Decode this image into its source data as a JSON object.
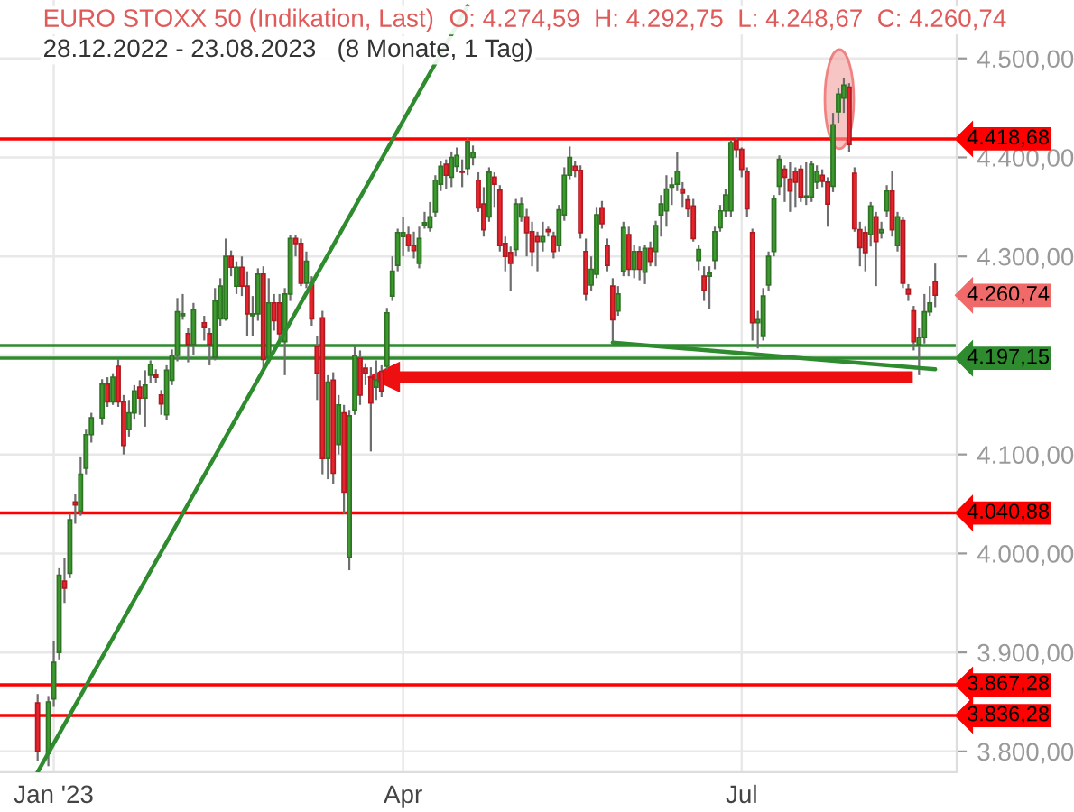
{
  "chart_data": {
    "type": "candlestick",
    "title": "EURO STOXX 50 (Indikation, Last)",
    "subtitle": "28.12.2022 - 23.08.2023   (8 Monate, 1 Tag)",
    "annotations": [
      "O: 4.274,59  H: 4.292,75  L: 4.248,67  C: 4.260,74",
      "4.260,74"
    ],
    "categories": [
      null,
      null,
      null,
      "Jan '23",
      null,
      null,
      null,
      null,
      null,
      null,
      null,
      null,
      null,
      null,
      null,
      null,
      null,
      null,
      null,
      null,
      null,
      null,
      null,
      null,
      null,
      null,
      null,
      null,
      null,
      null,
      null,
      null,
      null,
      null,
      null,
      null,
      null,
      null,
      null,
      null,
      null,
      null,
      null,
      null,
      null,
      null,
      null,
      null,
      null,
      null,
      null,
      null,
      null,
      null,
      null,
      null,
      null,
      null,
      null,
      null,
      null,
      null,
      null,
      null,
      null,
      null,
      null,
      null,
      "Apr",
      null,
      null,
      null,
      null,
      null,
      null,
      null,
      null,
      null,
      null,
      null,
      null,
      null,
      null,
      null,
      null,
      null,
      null,
      null,
      null,
      null,
      null,
      null,
      null,
      null,
      null,
      null,
      null,
      null,
      null,
      null,
      null,
      null,
      null,
      null,
      null,
      null,
      null,
      null,
      null,
      null,
      null,
      null,
      null,
      null,
      null,
      null,
      null,
      null,
      null,
      null,
      null,
      null,
      null,
      null,
      null,
      null,
      null,
      null,
      null,
      null,
      null,
      "Jul",
      null,
      null,
      null,
      null,
      null,
      null,
      null,
      null,
      null,
      null,
      null,
      null,
      null,
      null,
      null,
      null,
      null,
      null,
      null,
      null,
      null,
      null,
      null,
      null,
      null,
      null,
      null,
      null,
      null,
      null,
      null,
      null,
      null,
      null,
      null,
      null
    ],
    "ohlc": [
      [
        3849,
        3858,
        3790,
        3800
      ],
      null,
      [
        3798,
        3856,
        3785,
        3850
      ],
      [
        3853,
        3912,
        3845,
        3890
      ],
      [
        3900,
        3985,
        3893,
        3978
      ],
      [
        3972,
        3995,
        3950,
        3965
      ],
      [
        3980,
        4040,
        3975,
        4034
      ],
      [
        4052,
        4060,
        4030,
        4049
      ],
      [
        4043,
        4098,
        4038,
        4080
      ],
      [
        4086,
        4125,
        4080,
        4120
      ],
      [
        4120,
        4142,
        4112,
        4137
      ],
      null,
      [
        4137,
        4176,
        4130,
        4171
      ],
      [
        4171,
        4178,
        4148,
        4153
      ],
      [
        4153,
        4182,
        4150,
        4178
      ],
      [
        4189,
        4196,
        4148,
        4153
      ],
      [
        4153,
        4160,
        4100,
        4109
      ],
      [
        4125,
        4155,
        4118,
        4142
      ],
      [
        4142,
        4170,
        4136,
        4164
      ],
      [
        4168,
        4175,
        4140,
        4157
      ],
      [
        4157,
        4185,
        4128,
        4170
      ],
      [
        4180,
        4195,
        4172,
        4191
      ],
      [
        4180,
        4186,
        4172,
        4178
      ],
      [
        4160,
        4165,
        4140,
        4151
      ],
      [
        4140,
        4190,
        4135,
        4185
      ],
      [
        4175,
        4206,
        4170,
        4200
      ],
      [
        4200,
        4258,
        4194,
        4244
      ],
      [
        4240,
        4262,
        4236,
        4242
      ],
      [
        4222,
        4228,
        4193,
        4211
      ],
      [
        4211,
        4253,
        4200,
        4246
      ],
      null,
      [
        4233,
        4240,
        4215,
        4229
      ],
      [
        4222,
        4228,
        4190,
        4211
      ],
      [
        4198,
        4268,
        4195,
        4255
      ],
      [
        4237,
        4278,
        4230,
        4270
      ],
      [
        4237,
        4318,
        4235,
        4300
      ],
      [
        4300,
        4306,
        4280,
        4289
      ],
      [
        4270,
        4295,
        4262,
        4289
      ],
      [
        4289,
        4300,
        4260,
        4270
      ],
      [
        4270,
        4285,
        4220,
        4242
      ],
      [
        4240,
        4260,
        4220,
        4242
      ],
      [
        4242,
        4288,
        4235,
        4282
      ],
      [
        4282,
        4290,
        4186,
        4196
      ],
      [
        4198,
        4278,
        4195,
        4253
      ],
      [
        4253,
        4262,
        4225,
        4235
      ],
      [
        4253,
        4262,
        4215,
        4222
      ],
      [
        4214,
        4268,
        4180,
        4262
      ],
      [
        4262,
        4322,
        4255,
        4318
      ],
      [
        4318,
        4322,
        4300,
        4313
      ],
      [
        4313,
        4318,
        4270,
        4273
      ],
      [
        4273,
        4305,
        4268,
        4295
      ],
      [
        4273,
        4280,
        4230,
        4237
      ],
      [
        4209,
        4220,
        4155,
        4182
      ],
      [
        4238,
        4245,
        4080,
        4096
      ],
      [
        4096,
        4180,
        4075,
        4173
      ],
      [
        4175,
        4183,
        4070,
        4081
      ],
      [
        4110,
        4160,
        4100,
        4150
      ],
      [
        4142,
        4150,
        4040,
        4062
      ],
      [
        3996,
        4145,
        3983,
        4139
      ],
      [
        4145,
        4210,
        4140,
        4200
      ],
      [
        4197,
        4205,
        4150,
        4160
      ],
      [
        4187,
        4192,
        4170,
        4182
      ],
      [
        4178,
        4188,
        4103,
        4152
      ],
      [
        4168,
        4195,
        4155,
        4175
      ],
      [
        4184,
        4190,
        4158,
        4164
      ],
      [
        4189,
        4248,
        4186,
        4243
      ],
      [
        4260,
        4300,
        4255,
        4285
      ],
      [
        4291,
        4328,
        4285,
        4324
      ],
      [
        4320,
        4340,
        4300,
        4324
      ],
      [
        4322,
        4330,
        4305,
        4311
      ],
      [
        4311,
        4325,
        4298,
        4306
      ],
      [
        4293,
        4330,
        4288,
        4318
      ],
      [
        4332,
        4345,
        4328,
        4334
      ],
      [
        4329,
        4355,
        4325,
        4340
      ],
      [
        4345,
        4382,
        4340,
        4377
      ],
      [
        4373,
        4396,
        4366,
        4391
      ],
      [
        4393,
        4398,
        4368,
        4382
      ],
      [
        4380,
        4406,
        4370,
        4400
      ],
      [
        4391,
        4410,
        4385,
        4402
      ],
      [
        4386,
        4398,
        4370,
        4385
      ],
      [
        4389,
        4420,
        4382,
        4416
      ],
      [
        4400,
        4412,
        4392,
        4405
      ],
      [
        4377,
        4385,
        4345,
        4349
      ],
      [
        4353,
        4370,
        4320,
        4327
      ],
      [
        4340,
        4390,
        4335,
        4385
      ],
      [
        4380,
        4385,
        4350,
        4373
      ],
      [
        4367,
        4372,
        4305,
        4311
      ],
      [
        4313,
        4320,
        4285,
        4300
      ],
      [
        4304,
        4310,
        4265,
        4293
      ],
      [
        4307,
        4358,
        4300,
        4353
      ],
      [
        4340,
        4360,
        4335,
        4353
      ],
      [
        4340,
        4348,
        4300,
        4324
      ],
      [
        4325,
        4335,
        4290,
        4305
      ],
      [
        4320,
        4325,
        4285,
        4315
      ],
      [
        4315,
        4335,
        4305,
        4320
      ],
      [
        4327,
        4330,
        4320,
        4325
      ],
      [
        4320,
        4325,
        4298,
        4305
      ],
      [
        4311,
        4352,
        4305,
        4347
      ],
      [
        4342,
        4390,
        4336,
        4382
      ],
      [
        4382,
        4411,
        4378,
        4400
      ],
      [
        4391,
        4396,
        4380,
        4387
      ],
      [
        4387,
        4392,
        4318,
        4324
      ],
      [
        4305,
        4318,
        4255,
        4262
      ],
      [
        4271,
        4300,
        4265,
        4287
      ],
      [
        4282,
        4350,
        4278,
        4342
      ],
      [
        4349,
        4356,
        4328,
        4333
      ],
      [
        4311,
        4318,
        4285,
        4291
      ],
      [
        4270,
        4278,
        4213,
        4236
      ],
      [
        4245,
        4270,
        4240,
        4262
      ],
      [
        4285,
        4335,
        4280,
        4329
      ],
      [
        4322,
        4330,
        4280,
        4287
      ],
      [
        4287,
        4312,
        4278,
        4305
      ],
      [
        4305,
        4310,
        4276,
        4287
      ],
      [
        4284,
        4312,
        4272,
        4308
      ],
      [
        4308,
        4315,
        4290,
        4295
      ],
      [
        4305,
        4336,
        4290,
        4331
      ],
      [
        4342,
        4362,
        4320,
        4353
      ],
      [
        4346,
        4382,
        4330,
        4368
      ],
      [
        4370,
        4380,
        4352,
        4372
      ],
      [
        4373,
        4405,
        4366,
        4386
      ],
      [
        4368,
        4375,
        4350,
        4364
      ],
      [
        4357,
        4362,
        4340,
        4348
      ],
      [
        4351,
        4358,
        4315,
        4318
      ],
      [
        4296,
        4312,
        4286,
        4307
      ],
      [
        4280,
        4290,
        4255,
        4266
      ],
      [
        4280,
        4290,
        4247,
        4283
      ],
      [
        4296,
        4330,
        4287,
        4325
      ],
      [
        4329,
        4352,
        4325,
        4346
      ],
      [
        4346,
        4368,
        4340,
        4362
      ],
      [
        4346,
        4418,
        4340,
        4415
      ],
      [
        4417,
        4420,
        4400,
        4408
      ],
      [
        4408,
        4410,
        4380,
        4388
      ],
      [
        4386,
        4390,
        4340,
        4348
      ],
      [
        4324,
        4328,
        4215,
        4233
      ],
      [
        4233,
        4245,
        4207,
        4236
      ],
      [
        4220,
        4268,
        4215,
        4260
      ],
      [
        4271,
        4305,
        4265,
        4300
      ],
      [
        4305,
        4362,
        4300,
        4358
      ],
      [
        4371,
        4402,
        4362,
        4398
      ],
      [
        4388,
        4392,
        4355,
        4380
      ],
      [
        4378,
        4395,
        4345,
        4366
      ],
      [
        4386,
        4390,
        4350,
        4375
      ],
      [
        4388,
        4392,
        4355,
        4360
      ],
      [
        4360,
        4395,
        4352,
        4361
      ],
      [
        4360,
        4396,
        4355,
        4393
      ],
      [
        4375,
        4392,
        4368,
        4386
      ],
      [
        4382,
        4388,
        4370,
        4376
      ],
      [
        4375,
        4380,
        4330,
        4353
      ],
      [
        4371,
        4445,
        4365,
        4433
      ],
      [
        4446,
        4470,
        4435,
        4464
      ],
      [
        4460,
        4480,
        4445,
        4473
      ],
      [
        4471,
        4475,
        4405,
        4413
      ],
      [
        4384,
        4390,
        4325,
        4328
      ],
      [
        4327,
        4335,
        4290,
        4309
      ],
      [
        4324,
        4330,
        4285,
        4304
      ],
      [
        4322,
        4355,
        4310,
        4351
      ],
      [
        4340,
        4345,
        4270,
        4315
      ],
      [
        4324,
        4335,
        4318,
        4327
      ],
      [
        4346,
        4372,
        4340,
        4366
      ],
      [
        4366,
        4386,
        4320,
        4327
      ],
      [
        4311,
        4345,
        4305,
        4340
      ],
      [
        4336,
        4340,
        4268,
        4273
      ],
      [
        4267,
        4272,
        4255,
        4262
      ],
      [
        4245,
        4250,
        4205,
        4214
      ],
      [
        4211,
        4228,
        4180,
        4218
      ],
      [
        4218,
        4262,
        4212,
        4244
      ],
      [
        4244,
        4270,
        4240,
        4253
      ],
      [
        4274.59,
        4292.75,
        4248.67,
        4260.74
      ]
    ],
    "colors": [
      "#e8232b",
      null,
      "#3d9a2f",
      "#3d9a2f",
      "#3d9a2f",
      "#e8232b",
      "#3d9a2f",
      "#e8232b",
      "#3d9a2f",
      "#3d9a2f",
      "#3d9a2f",
      null,
      "#3d9a2f",
      "#e8232b",
      "#3d9a2f",
      "#e8232b",
      "#e8232b",
      "#3d9a2f",
      "#3d9a2f",
      "#e8232b",
      "#3d9a2f",
      "#3d9a2f",
      "#e8232b",
      "#e8232b",
      "#3d9a2f",
      "#3d9a2f",
      "#3d9a2f",
      "#3d9a2f",
      "#e8232b",
      "#3d9a2f",
      null,
      "#e8232b",
      "#e8232b",
      "#3d9a2f",
      "#3d9a2f",
      "#3d9a2f",
      "#e8232b",
      "#3d9a2f",
      "#e8232b",
      "#e8232b",
      "#3d9a2f",
      "#3d9a2f",
      "#e8232b",
      "#3d9a2f",
      "#e8232b",
      "#e8232b",
      "#3d9a2f",
      "#3d9a2f",
      "#e8232b",
      "#e8232b",
      "#3d9a2f",
      "#e8232b",
      "#e8232b",
      "#e8232b",
      "#3d9a2f",
      "#e8232b",
      "#3d9a2f",
      "#e8232b",
      "#3d9a2f",
      "#3d9a2f",
      "#e8232b",
      "#e8232b",
      "#e8232b",
      "#3d9a2f",
      "#e8232b",
      "#3d9a2f",
      "#3d9a2f",
      "#3d9a2f",
      "#3d9a2f",
      "#e8232b",
      "#e8232b",
      "#3d9a2f",
      "#3d9a2f",
      "#3d9a2f",
      "#3d9a2f",
      "#3d9a2f",
      "#e8232b",
      "#3d9a2f",
      "#3d9a2f",
      "#e8232b",
      "#3d9a2f",
      "#3d9a2f",
      "#e8232b",
      "#e8232b",
      "#3d9a2f",
      "#e8232b",
      "#e8232b",
      "#e8232b",
      "#e8232b",
      "#3d9a2f",
      "#3d9a2f",
      "#e8232b",
      "#e8232b",
      "#e8232b",
      "#3d9a2f",
      "#e8232b",
      "#e8232b",
      "#3d9a2f",
      "#3d9a2f",
      "#3d9a2f",
      "#e8232b",
      "#e8232b",
      "#e8232b",
      "#3d9a2f",
      "#3d9a2f",
      "#e8232b",
      "#e8232b",
      "#e8232b",
      "#3d9a2f",
      "#3d9a2f",
      "#e8232b",
      "#3d9a2f",
      "#e8232b",
      "#3d9a2f",
      "#e8232b",
      "#3d9a2f",
      "#3d9a2f",
      "#3d9a2f",
      "#3d9a2f",
      "#3d9a2f",
      "#e8232b",
      "#e8232b",
      "#e8232b",
      "#3d9a2f",
      "#e8232b",
      "#3d9a2f",
      "#3d9a2f",
      "#3d9a2f",
      "#3d9a2f",
      "#3d9a2f",
      "#e8232b",
      "#e8232b",
      "#e8232b",
      "#e8232b",
      "#3d9a2f",
      "#3d9a2f",
      "#3d9a2f",
      "#3d9a2f",
      "#3d9a2f",
      "#e8232b",
      "#e8232b",
      "#e8232b",
      "#e8232b",
      "#3d9a2f",
      "#3d9a2f",
      "#3d9a2f",
      "#e8232b",
      "#e8232b",
      "#3d9a2f",
      "#3d9a2f",
      "#3d9a2f",
      "#e8232b",
      "#e8232b",
      "#e8232b",
      "#e8232b",
      "#3d9a2f",
      "#e8232b",
      "#3d9a2f",
      "#3d9a2f",
      "#e8232b",
      "#3d9a2f",
      "#e8232b",
      "#e8232b",
      "#e8232b",
      "#3d9a2f",
      "#3d9a2f",
      "#3d9a2f",
      "#e8232b"
    ],
    "series": [
      {
        "type": "line",
        "color": "#2e8b2e",
        "values": [
          3779,
          null,
          null,
          null,
          null,
          null,
          null,
          null,
          null,
          null,
          null,
          null,
          null,
          null,
          null,
          null,
          null,
          null,
          null,
          null,
          null,
          null,
          null,
          null,
          null,
          null,
          null,
          null,
          null,
          null,
          null,
          null,
          null,
          null,
          null,
          null,
          null,
          null,
          null,
          null,
          null,
          null,
          null,
          null,
          null,
          null,
          null,
          null,
          null,
          null,
          null,
          null,
          null,
          null,
          null,
          null,
          null,
          null,
          null,
          null,
          null,
          null,
          null,
          null,
          null,
          null,
          null,
          null,
          null,
          null,
          null,
          null,
          null,
          null,
          null,
          null,
          null,
          null,
          null,
          null,
          4553,
          null,
          null,
          null,
          null,
          null,
          null,
          null,
          null,
          null,
          null,
          null,
          null,
          null,
          null,
          null,
          null,
          null,
          null,
          null,
          null,
          null,
          null,
          null,
          null,
          null,
          null,
          null,
          null,
          null,
          null,
          null,
          null,
          null,
          null,
          null,
          null,
          null,
          null,
          null,
          null,
          null,
          null,
          null,
          null,
          null,
          null,
          null,
          null,
          null,
          null,
          null,
          null,
          null,
          null,
          null,
          null,
          null,
          null,
          null,
          null,
          null,
          null,
          null,
          null,
          null,
          null,
          null,
          null,
          null,
          null,
          null,
          null,
          null,
          null,
          null,
          null,
          null,
          null,
          null,
          null,
          null,
          null,
          null,
          null,
          null,
          null,
          null
        ]
      },
      {
        "type": "line",
        "color": "#2e8b2e",
        "values": [
          null,
          null,
          null,
          null,
          null,
          null,
          null,
          null,
          null,
          null,
          null,
          null,
          null,
          null,
          null,
          null,
          null,
          null,
          null,
          null,
          null,
          null,
          null,
          null,
          null,
          null,
          null,
          null,
          null,
          null,
          null,
          null,
          null,
          null,
          null,
          null,
          null,
          null,
          null,
          null,
          null,
          null,
          null,
          null,
          null,
          null,
          null,
          null,
          null,
          null,
          null,
          null,
          null,
          null,
          null,
          null,
          null,
          null,
          null,
          null,
          null,
          null,
          null,
          null,
          null,
          null,
          null,
          null,
          null,
          null,
          null,
          null,
          null,
          null,
          null,
          null,
          null,
          null,
          null,
          null,
          null,
          null,
          null,
          null,
          null,
          null,
          null,
          null,
          null,
          null,
          null,
          null,
          null,
          null,
          null,
          null,
          null,
          null,
          null,
          null,
          null,
          null,
          null,
          null,
          null,
          null,
          null,
          4213,
          null,
          null,
          null,
          null,
          null,
          null,
          null,
          null,
          null,
          null,
          null,
          null,
          null,
          null,
          null,
          null,
          null,
          null,
          null,
          null,
          null,
          null,
          null,
          null,
          null,
          null,
          null,
          null,
          null,
          null,
          null,
          null,
          null,
          null,
          null,
          null,
          null,
          null,
          null,
          null,
          null,
          null,
          null,
          null,
          null,
          null,
          null,
          null,
          null,
          null,
          null,
          null,
          null,
          null,
          null,
          null,
          null,
          null,
          null,
          4186
        ]
      }
    ],
    "ref_lines": [
      {
        "axis": "y",
        "value": 4418.68,
        "label": "4.418,68",
        "color": "#ff0000"
      },
      {
        "axis": "y",
        "value": 4210,
        "label": null,
        "color": "#2e8b2e"
      },
      {
        "axis": "y",
        "value": 4197.15,
        "label": "4.197,15",
        "color": "#2e8b2e"
      },
      {
        "axis": "y",
        "value": 4040.88,
        "label": "4.040,88",
        "color": "#ff0000"
      },
      {
        "axis": "y",
        "value": 3867.28,
        "label": "3.867,28",
        "color": "#ff0000"
      },
      {
        "axis": "y",
        "value": 3836.28,
        "label": "3.836,28",
        "color": "#ff0000"
      }
    ],
    "ylim": [
      3779,
      4559
    ],
    "yticks": [
      {
        "value": 3800,
        "label": "3.800,00"
      },
      {
        "value": 3900,
        "label": "3.900,00"
      },
      {
        "value": 4000,
        "label": "4.000,00"
      },
      {
        "value": 4100,
        "label": "4.100,00"
      },
      {
        "value": 4200,
        "label": null
      },
      {
        "value": 4300,
        "label": "4.300,00"
      },
      {
        "value": 4400,
        "label": "4.400,00"
      },
      {
        "value": 4500,
        "label": "4.500,00"
      }
    ],
    "grid": true
  }
}
